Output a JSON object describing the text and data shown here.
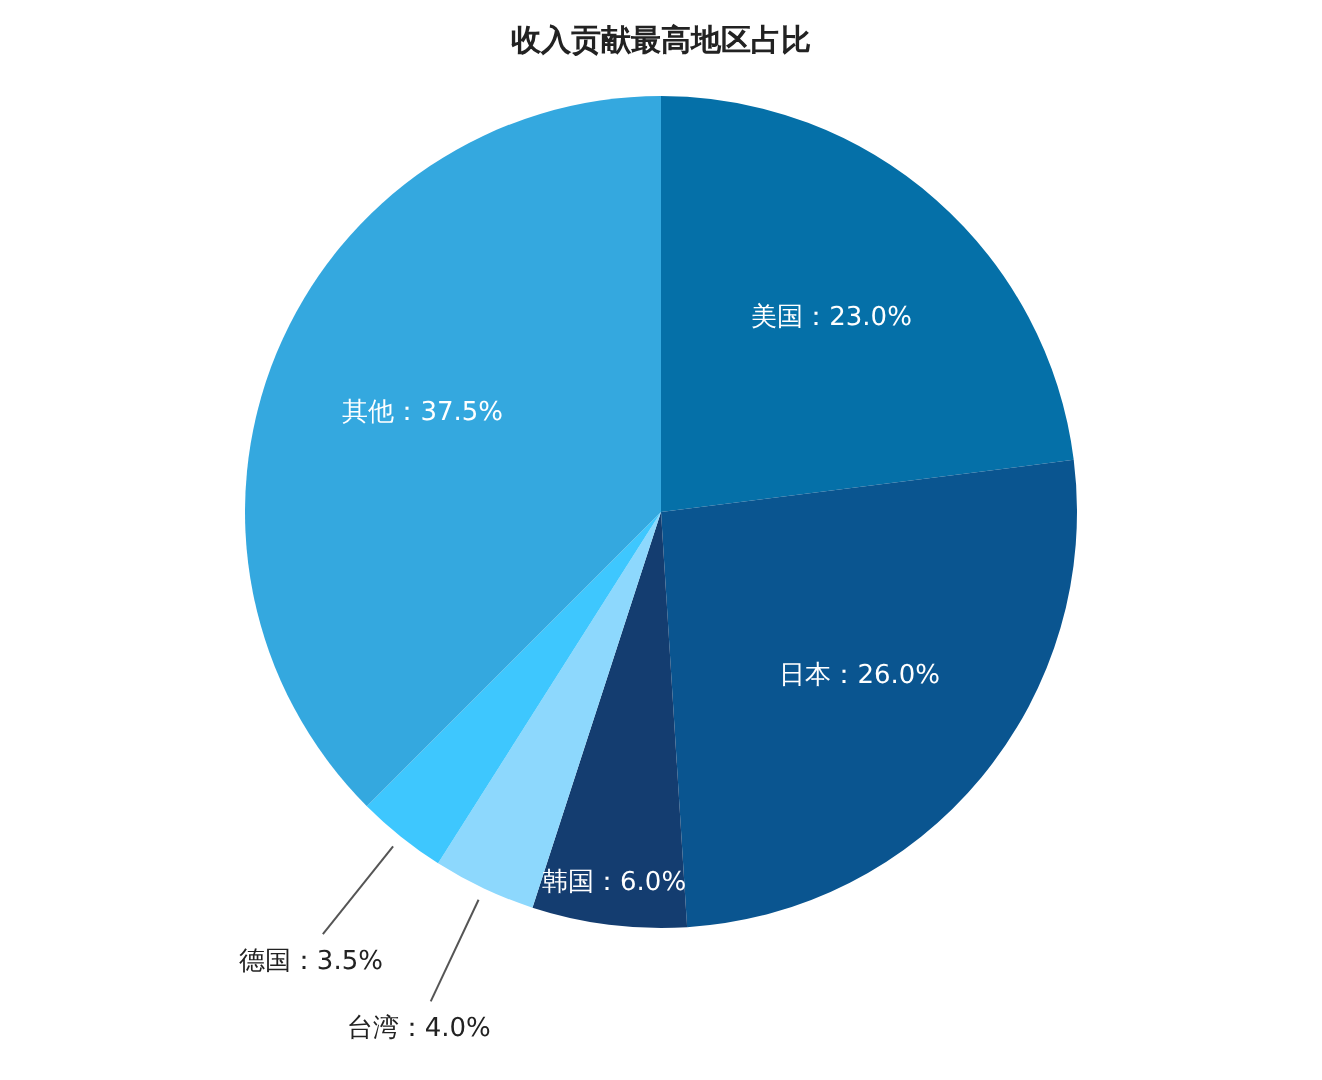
{
  "chart_data": {
    "type": "pie",
    "title": "收入贡献最高地区占比",
    "categories": [
      "美国：23.0%",
      "日本：26.0%",
      "韩国：6.0%",
      "台湾：4.0%",
      "德国：3.5%",
      "其他：37.5%"
    ],
    "values": [
      23.0,
      26.0,
      6.0,
      4.0,
      3.5,
      37.5
    ],
    "colors": [
      "#0570a8",
      "#0a5590",
      "#143d70",
      "#8dd8fd",
      "#3ec7fe",
      "#34a8df"
    ],
    "legend": false
  }
}
